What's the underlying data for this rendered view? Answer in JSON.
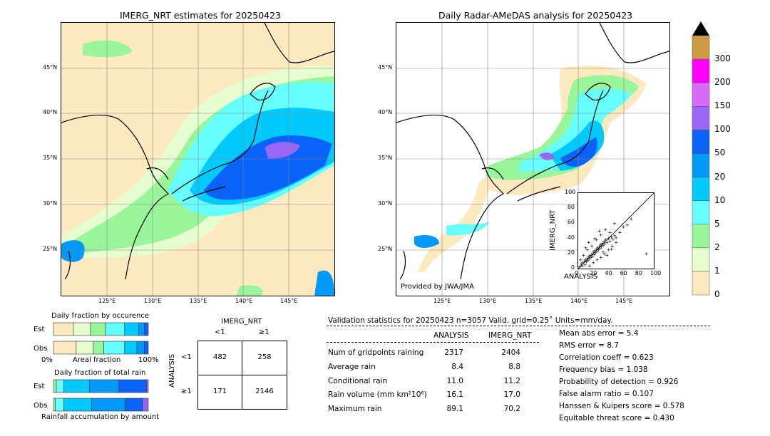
{
  "imerg_map": {
    "title": "IMERG_NRT estimates for 20250423",
    "lat_labels": [
      "45°N",
      "40°N",
      "35°N",
      "30°N",
      "25°N"
    ],
    "lon_labels": [
      "125°E",
      "130°E",
      "135°E",
      "140°E",
      "145°E"
    ]
  },
  "radar_map": {
    "title": "Daily Radar-AMeDAS analysis for 20250423",
    "lat_labels": [
      "45°N",
      "40°N",
      "35°N",
      "30°N",
      "25°N"
    ],
    "lon_labels": [
      "125°E",
      "130°E",
      "135°E",
      "140°E",
      "145°E"
    ],
    "credit": "Provided by JWA/JMA"
  },
  "colorbar": {
    "levels": [
      "0",
      "1",
      "2",
      "5",
      "10",
      "20",
      "50",
      "100",
      "150",
      "200",
      "300"
    ],
    "colors": [
      "#fde9bf",
      "#e6fdd0",
      "#99f59a",
      "#66fefe",
      "#00cafd",
      "#0099f8",
      "#0a62f8",
      "#9966f6",
      "#d96bfa",
      "#ff00fe",
      "#cc9a40"
    ],
    "extend_color": "#000000"
  },
  "scatter": {
    "xlabel": "ANALYSIS",
    "ylabel": "IMERG_NRT",
    "ticks": [
      "0",
      "20",
      "40",
      "60",
      "80",
      "100"
    ]
  },
  "occurrence": {
    "title": "Daily fraction by occurence",
    "rows": [
      "Est",
      "Obs"
    ],
    "axis_left": "0%",
    "axis_mid": "Areal fraction",
    "axis_right": "100%"
  },
  "total_rain": {
    "title": "Daily fraction of total rain",
    "rows": [
      "Est",
      "Obs"
    ],
    "footer": "Rainfall accumulation by amount"
  },
  "contingency": {
    "col_title": "IMERG_NRT",
    "row_title": "ANALYSIS",
    "col_labels": [
      "<1",
      "≥1"
    ],
    "row_labels": [
      "<1",
      "≥1"
    ],
    "cells": [
      [
        "482",
        "258"
      ],
      [
        "171",
        "2146"
      ]
    ]
  },
  "validation": {
    "header": "Validation statistics for 20250423  n=3057 Valid. grid=0.25˚ Units=mm/day.",
    "col_analysis": "ANALYSIS",
    "col_imerg": "IMERG_NRT",
    "rows": [
      {
        "label": "Num of gridpoints raining",
        "analysis": "2317",
        "imerg": "2404"
      },
      {
        "label": "Average rain",
        "analysis": "8.4",
        "imerg": "8.8"
      },
      {
        "label": "Conditional rain",
        "analysis": "11.0",
        "imerg": "11.2"
      },
      {
        "label": "Rain volume (mm km²10⁶)",
        "analysis": "16.1",
        "imerg": "17.0"
      },
      {
        "label": "Maximum rain",
        "analysis": "89.1",
        "imerg": "70.2"
      }
    ],
    "scores": [
      "Mean abs error =    5.4",
      "RMS error =    8.7",
      "Correlation coeff =  0.623",
      "Frequency bias =  1.038",
      "Probability of detection =  0.926",
      "False alarm ratio =  0.107",
      "Hanssen & Kuipers score =  0.578",
      "Equitable threat score =  0.430"
    ]
  },
  "chart_data": [
    {
      "type": "heatmap",
      "title": "IMERG_NRT estimates for 20250423",
      "x_ticks": [
        "125°E",
        "130°E",
        "135°E",
        "140°E",
        "145°E"
      ],
      "y_ticks": [
        "45°N",
        "40°N",
        "35°N",
        "30°N",
        "25°N"
      ],
      "xlim": [
        120,
        150
      ],
      "ylim": [
        20,
        50
      ]
    },
    {
      "type": "heatmap",
      "title": "Daily Radar-AMeDAS analysis for 20250423",
      "x_ticks": [
        "125°E",
        "130°E",
        "135°E",
        "140°E",
        "145°E"
      ],
      "y_ticks": [
        "45°N",
        "40°N",
        "35°N",
        "30°N",
        "25°N"
      ],
      "xlim": [
        120,
        150
      ],
      "ylim": [
        20,
        50
      ]
    },
    {
      "type": "scatter",
      "xlabel": "ANALYSIS",
      "ylabel": "IMERG_NRT",
      "xlim": [
        0,
        100
      ],
      "ylim": [
        0,
        100
      ],
      "x": [
        2,
        4,
        5,
        6,
        8,
        9,
        10,
        11,
        12,
        13,
        14,
        15,
        16,
        17,
        18,
        19,
        20,
        21,
        22,
        23,
        24,
        25,
        26,
        27,
        28,
        29,
        30,
        31,
        32,
        33,
        34,
        35,
        36,
        38,
        40,
        42,
        44,
        46,
        48,
        50,
        55,
        60,
        65,
        70,
        3,
        7,
        12,
        18,
        24,
        30,
        36,
        42,
        48,
        15,
        20,
        25,
        30,
        35,
        40,
        45,
        50,
        10,
        14,
        22,
        28,
        33,
        38,
        44,
        90
      ],
      "y": [
        3,
        6,
        4,
        8,
        10,
        5,
        12,
        9,
        14,
        11,
        16,
        13,
        18,
        15,
        20,
        17,
        22,
        19,
        24,
        21,
        26,
        23,
        28,
        25,
        30,
        27,
        32,
        29,
        34,
        31,
        36,
        33,
        38,
        35,
        40,
        37,
        42,
        39,
        44,
        41,
        48,
        55,
        58,
        66,
        12,
        18,
        25,
        30,
        38,
        45,
        52,
        48,
        60,
        4,
        8,
        12,
        15,
        20,
        25,
        30,
        35,
        28,
        35,
        40,
        50,
        22,
        18,
        26,
        20
      ]
    },
    {
      "type": "bar",
      "title": "Daily fraction by occurence",
      "categories": [
        "Est",
        "Obs"
      ],
      "series": [
        {
          "color": "#fde9bf",
          "values": [
            0.21,
            0.24
          ]
        },
        {
          "color": "#e6fdd0",
          "values": [
            0.18,
            0.18
          ]
        },
        {
          "color": "#99f59a",
          "values": [
            0.16,
            0.11
          ]
        },
        {
          "color": "#66fefe",
          "values": [
            0.2,
            0.22
          ]
        },
        {
          "color": "#00cafd",
          "values": [
            0.15,
            0.13
          ]
        },
        {
          "color": "#0099f8",
          "values": [
            0.06,
            0.08
          ]
        },
        {
          "color": "#0a62f8",
          "values": [
            0.04,
            0.04
          ]
        }
      ]
    },
    {
      "type": "bar",
      "title": "Daily fraction of total rain",
      "categories": [
        "Est",
        "Obs"
      ],
      "series": [
        {
          "color": "#99f59a",
          "values": [
            0.03,
            0.02
          ]
        },
        {
          "color": "#66fefe",
          "values": [
            0.08,
            0.09
          ]
        },
        {
          "color": "#00cafd",
          "values": [
            0.27,
            0.29
          ]
        },
        {
          "color": "#0099f8",
          "values": [
            0.31,
            0.36
          ]
        },
        {
          "color": "#0a62f8",
          "values": [
            0.29,
            0.18
          ]
        },
        {
          "color": "#9966f6",
          "values": [
            0.02,
            0.06
          ]
        }
      ]
    }
  ]
}
